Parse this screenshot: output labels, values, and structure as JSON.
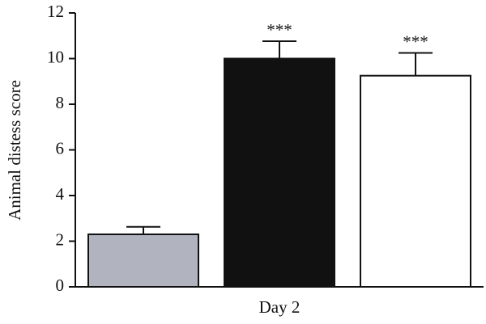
{
  "chart_data": {
    "type": "bar",
    "y_label": "Animal distess score",
    "x_label": "Day 2",
    "categories": [
      null,
      null,
      null
    ],
    "values": [
      2.3,
      10.0,
      9.25
    ],
    "errors": [
      0.33,
      0.76,
      1.0
    ],
    "colors": [
      "#b1b3bf",
      "#111111",
      "#ffffff"
    ],
    "annotations": [
      null,
      "***",
      "***"
    ],
    "ylim": [
      0,
      12
    ],
    "yticks": [
      0,
      2,
      4,
      6,
      8,
      10,
      12
    ],
    "grid": false
  }
}
